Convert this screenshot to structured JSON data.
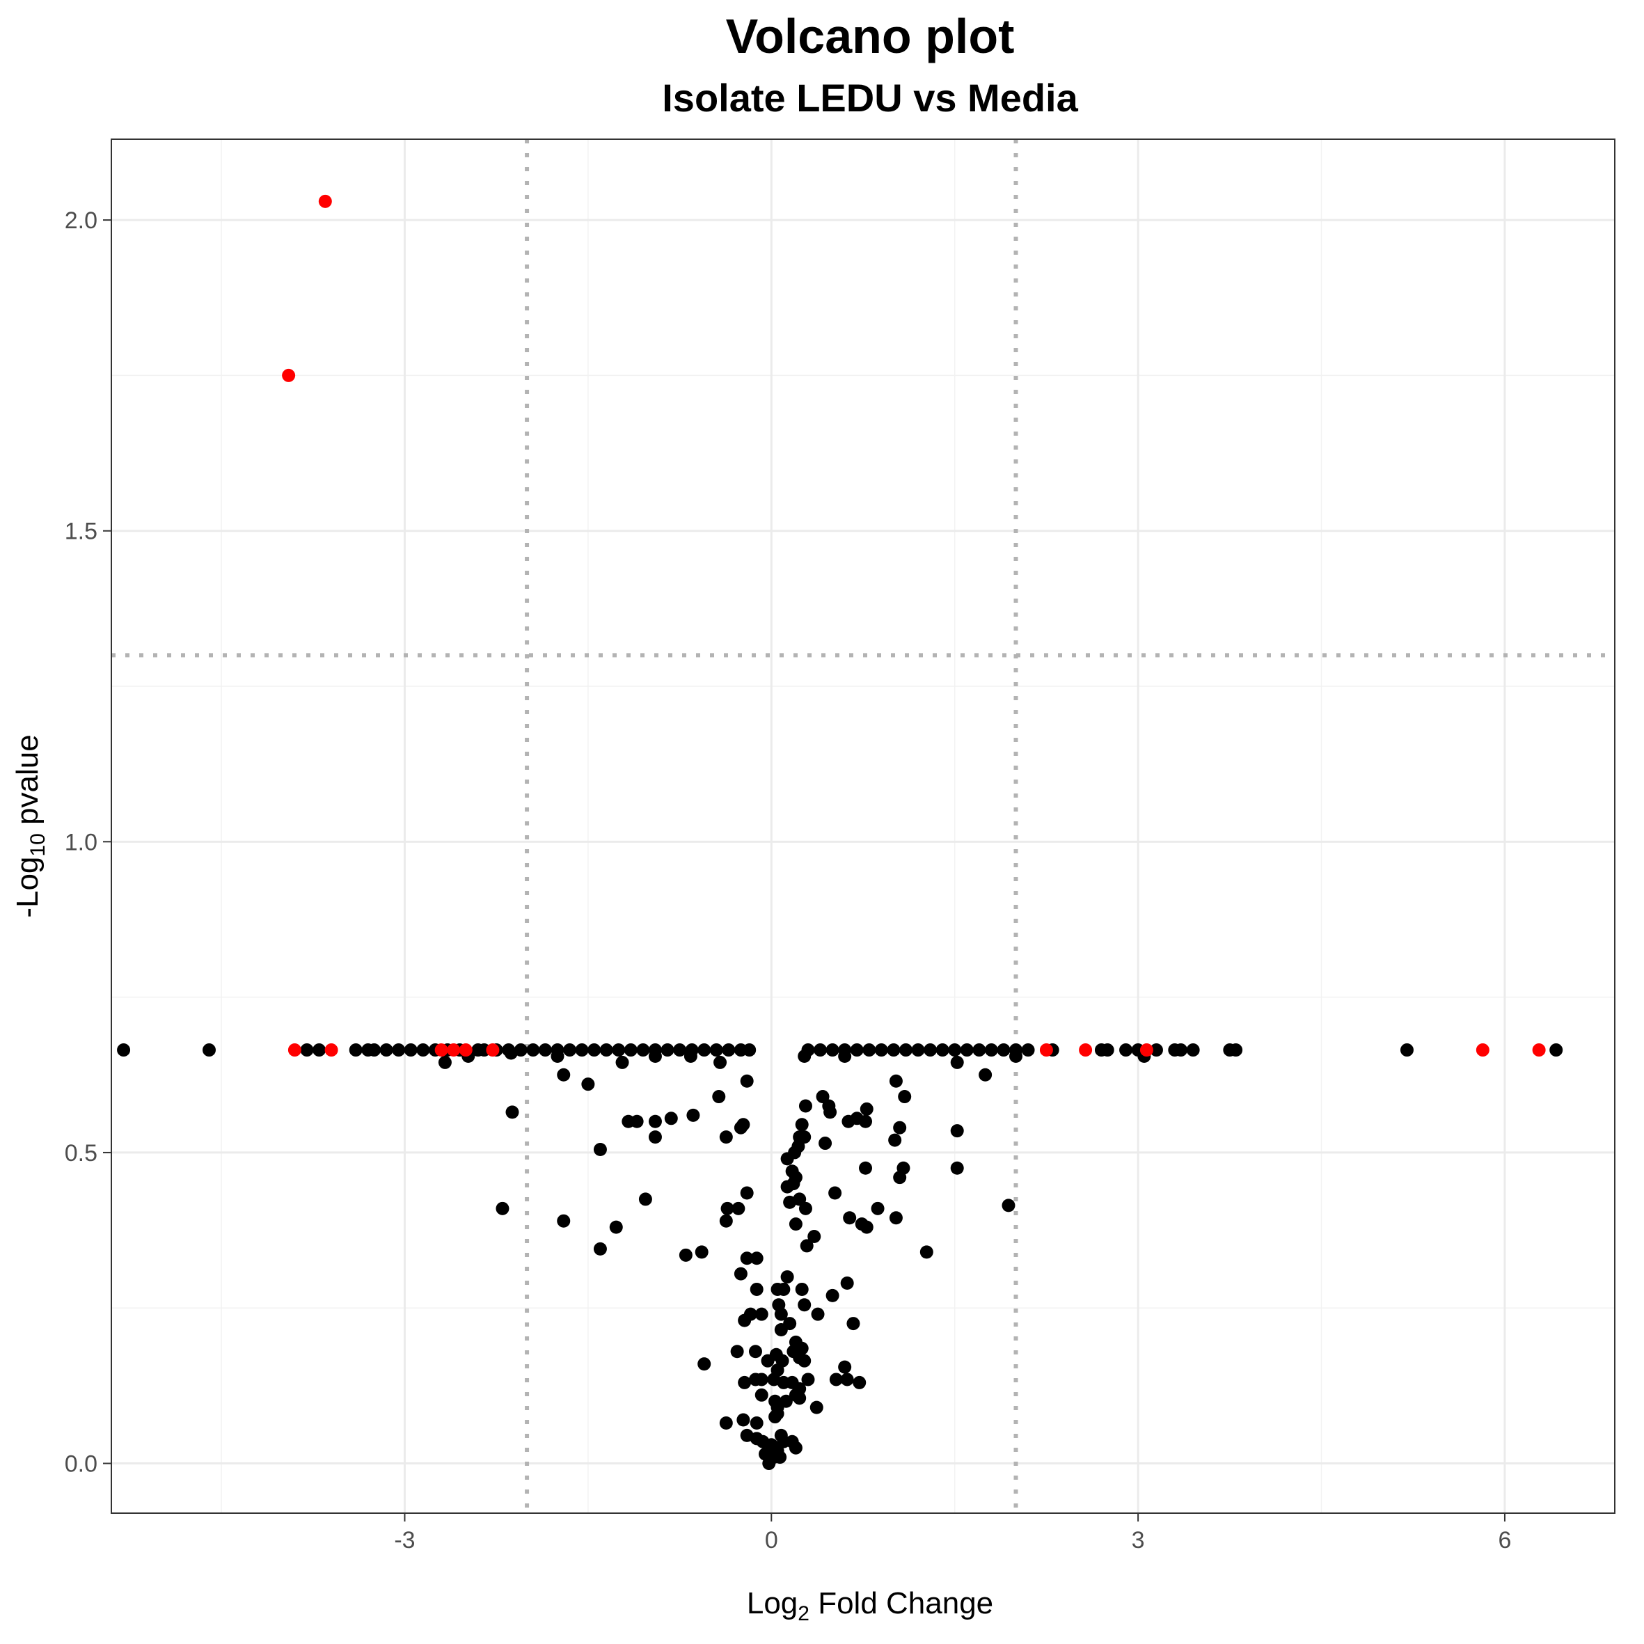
{
  "chart_data": {
    "type": "scatter",
    "title": "Volcano plot",
    "subtitle": "Isolate LEDU vs Media",
    "xlabel": {
      "prefix": "Log",
      "sub": "2",
      "suffix": " Fold Change"
    },
    "ylabel": {
      "prefix": "-Log",
      "sub": "10",
      "suffix": " pvalue"
    },
    "xlim": [
      -5.4,
      6.9
    ],
    "ylim": [
      -0.08,
      2.13
    ],
    "x_ticks": [
      -3,
      0,
      3,
      6
    ],
    "x_tick_labels": [
      "-3",
      "0",
      "3",
      "6"
    ],
    "y_ticks": [
      0.0,
      0.5,
      1.0,
      1.5,
      2.0
    ],
    "y_tick_labels": [
      "0.0",
      "0.5",
      "1.0",
      "1.5",
      "2.0"
    ],
    "grid": true,
    "thresholds": {
      "fold_change": [
        -2,
        2
      ],
      "neg_log10_pvalue": 1.3
    },
    "colors": {
      "highlighted": "#ff0000",
      "default": "#000000",
      "threshold_line": "#b3b3b3"
    },
    "series": [
      {
        "color": "#ff0000",
        "points": [
          [
            -3.65,
            2.03
          ],
          [
            -3.95,
            1.75
          ],
          [
            -3.9,
            0.665
          ],
          [
            -3.6,
            0.665
          ],
          [
            -2.7,
            0.665
          ],
          [
            -2.6,
            0.665
          ],
          [
            -2.5,
            0.665
          ],
          [
            -2.28,
            0.665
          ],
          [
            2.25,
            0.665
          ],
          [
            2.57,
            0.665
          ],
          [
            3.07,
            0.665
          ],
          [
            5.82,
            0.665
          ],
          [
            6.28,
            0.665
          ]
        ]
      },
      {
        "color": "#000000",
        "points": [
          [
            -5.3,
            0.665
          ],
          [
            -4.6,
            0.665
          ],
          [
            -3.8,
            0.665
          ],
          [
            -3.7,
            0.665
          ],
          [
            -3.4,
            0.665
          ],
          [
            -3.3,
            0.665
          ],
          [
            -3.25,
            0.665
          ],
          [
            -3.15,
            0.665
          ],
          [
            -3.05,
            0.665
          ],
          [
            -2.95,
            0.665
          ],
          [
            -2.85,
            0.665
          ],
          [
            -2.75,
            0.665
          ],
          [
            -2.65,
            0.665
          ],
          [
            -2.55,
            0.665
          ],
          [
            -2.4,
            0.665
          ],
          [
            -2.35,
            0.665
          ],
          [
            -2.25,
            0.665
          ],
          [
            -2.15,
            0.665
          ],
          [
            -2.05,
            0.665
          ],
          [
            -1.95,
            0.665
          ],
          [
            -1.85,
            0.665
          ],
          [
            -1.75,
            0.665
          ],
          [
            -1.65,
            0.665
          ],
          [
            -1.55,
            0.665
          ],
          [
            -1.45,
            0.665
          ],
          [
            -1.35,
            0.665
          ],
          [
            -1.25,
            0.665
          ],
          [
            -1.15,
            0.665
          ],
          [
            -1.05,
            0.665
          ],
          [
            -0.95,
            0.665
          ],
          [
            -0.85,
            0.665
          ],
          [
            -0.75,
            0.665
          ],
          [
            -0.65,
            0.665
          ],
          [
            -0.55,
            0.665
          ],
          [
            -0.45,
            0.665
          ],
          [
            -0.35,
            0.665
          ],
          [
            -0.25,
            0.665
          ],
          [
            -0.18,
            0.665
          ],
          [
            0.3,
            0.665
          ],
          [
            0.4,
            0.665
          ],
          [
            0.5,
            0.665
          ],
          [
            0.6,
            0.665
          ],
          [
            0.7,
            0.665
          ],
          [
            0.8,
            0.665
          ],
          [
            0.9,
            0.665
          ],
          [
            1.0,
            0.665
          ],
          [
            1.1,
            0.665
          ],
          [
            1.2,
            0.665
          ],
          [
            1.3,
            0.665
          ],
          [
            1.4,
            0.665
          ],
          [
            1.5,
            0.665
          ],
          [
            1.6,
            0.665
          ],
          [
            1.7,
            0.665
          ],
          [
            1.8,
            0.665
          ],
          [
            1.9,
            0.665
          ],
          [
            2.0,
            0.665
          ],
          [
            2.1,
            0.665
          ],
          [
            2.3,
            0.665
          ],
          [
            2.7,
            0.665
          ],
          [
            2.75,
            0.665
          ],
          [
            2.9,
            0.665
          ],
          [
            3.0,
            0.665
          ],
          [
            3.15,
            0.665
          ],
          [
            3.3,
            0.665
          ],
          [
            3.35,
            0.665
          ],
          [
            3.45,
            0.665
          ],
          [
            3.75,
            0.665
          ],
          [
            3.8,
            0.665
          ],
          [
            5.2,
            0.665
          ],
          [
            6.42,
            0.665
          ],
          [
            -2.67,
            0.645
          ],
          [
            -2.48,
            0.655
          ],
          [
            -2.13,
            0.66
          ],
          [
            -1.7,
            0.625
          ],
          [
            -1.75,
            0.655
          ],
          [
            -1.5,
            0.61
          ],
          [
            -1.22,
            0.645
          ],
          [
            -0.95,
            0.655
          ],
          [
            -0.66,
            0.655
          ],
          [
            -0.42,
            0.645
          ],
          [
            -0.43,
            0.59
          ],
          [
            -0.2,
            0.615
          ],
          [
            0.27,
            0.655
          ],
          [
            0.6,
            0.655
          ],
          [
            1.02,
            0.615
          ],
          [
            1.09,
            0.59
          ],
          [
            1.52,
            0.645
          ],
          [
            1.75,
            0.625
          ],
          [
            2.0,
            0.655
          ],
          [
            3.05,
            0.655
          ],
          [
            -2.12,
            0.565
          ],
          [
            -1.4,
            0.505
          ],
          [
            -1.17,
            0.55
          ],
          [
            -1.1,
            0.55
          ],
          [
            -0.95,
            0.55
          ],
          [
            -0.95,
            0.525
          ],
          [
            -0.82,
            0.555
          ],
          [
            -0.64,
            0.56
          ],
          [
            -0.37,
            0.525
          ],
          [
            -0.25,
            0.54
          ],
          [
            -0.23,
            0.545
          ],
          [
            0.25,
            0.545
          ],
          [
            0.23,
            0.525
          ],
          [
            0.27,
            0.525
          ],
          [
            0.28,
            0.575
          ],
          [
            0.42,
            0.59
          ],
          [
            0.44,
            0.515
          ],
          [
            0.47,
            0.575
          ],
          [
            0.48,
            0.565
          ],
          [
            0.63,
            0.55
          ],
          [
            0.7,
            0.555
          ],
          [
            0.77,
            0.55
          ],
          [
            0.78,
            0.57
          ],
          [
            1.01,
            0.52
          ],
          [
            1.05,
            0.54
          ],
          [
            1.52,
            0.535
          ],
          [
            0.2,
            0.46
          ],
          [
            0.13,
            0.49
          ],
          [
            0.17,
            0.47
          ],
          [
            0.19,
            0.5
          ],
          [
            0.22,
            0.51
          ],
          [
            -2.2,
            0.41
          ],
          [
            -1.7,
            0.39
          ],
          [
            -1.4,
            0.345
          ],
          [
            -1.27,
            0.38
          ],
          [
            -1.03,
            0.425
          ],
          [
            -0.7,
            0.335
          ],
          [
            -0.57,
            0.34
          ],
          [
            -0.37,
            0.39
          ],
          [
            -0.36,
            0.41
          ],
          [
            -0.27,
            0.41
          ],
          [
            -0.2,
            0.435
          ],
          [
            -0.2,
            0.33
          ],
          [
            -0.12,
            0.33
          ],
          [
            0.13,
            0.445
          ],
          [
            0.15,
            0.42
          ],
          [
            0.18,
            0.45
          ],
          [
            0.2,
            0.385
          ],
          [
            0.23,
            0.425
          ],
          [
            0.28,
            0.41
          ],
          [
            0.29,
            0.35
          ],
          [
            0.35,
            0.365
          ],
          [
            0.52,
            0.435
          ],
          [
            0.64,
            0.395
          ],
          [
            0.74,
            0.385
          ],
          [
            0.77,
            0.475
          ],
          [
            0.78,
            0.38
          ],
          [
            0.87,
            0.41
          ],
          [
            1.02,
            0.395
          ],
          [
            1.05,
            0.46
          ],
          [
            1.08,
            0.475
          ],
          [
            1.27,
            0.34
          ],
          [
            1.52,
            0.475
          ],
          [
            1.94,
            0.415
          ],
          [
            -0.25,
            0.305
          ],
          [
            -0.12,
            0.28
          ],
          [
            0.05,
            0.28
          ],
          [
            0.1,
            0.28
          ],
          [
            0.13,
            0.3
          ],
          [
            0.25,
            0.28
          ],
          [
            0.27,
            0.255
          ],
          [
            0.5,
            0.27
          ],
          [
            0.62,
            0.29
          ],
          [
            0.06,
            0.255
          ],
          [
            -0.22,
            0.23
          ],
          [
            -0.17,
            0.24
          ],
          [
            -0.08,
            0.24
          ],
          [
            0.08,
            0.24
          ],
          [
            0.08,
            0.215
          ],
          [
            0.15,
            0.225
          ],
          [
            0.38,
            0.24
          ],
          [
            0.67,
            0.225
          ],
          [
            -0.55,
            0.16
          ],
          [
            -0.28,
            0.18
          ],
          [
            -0.13,
            0.18
          ],
          [
            -0.03,
            0.165
          ],
          [
            0.04,
            0.175
          ],
          [
            0.09,
            0.165
          ],
          [
            0.18,
            0.18
          ],
          [
            0.2,
            0.195
          ],
          [
            0.23,
            0.17
          ],
          [
            0.25,
            0.185
          ],
          [
            0.27,
            0.165
          ],
          [
            0.6,
            0.155
          ],
          [
            -0.22,
            0.13
          ],
          [
            -0.13,
            0.135
          ],
          [
            -0.08,
            0.135
          ],
          [
            0.02,
            0.135
          ],
          [
            0.05,
            0.15
          ],
          [
            0.1,
            0.13
          ],
          [
            0.17,
            0.13
          ],
          [
            0.23,
            0.12
          ],
          [
            0.3,
            0.135
          ],
          [
            0.53,
            0.135
          ],
          [
            0.62,
            0.135
          ],
          [
            0.72,
            0.13
          ],
          [
            0.2,
            0.11
          ],
          [
            0.23,
            0.105
          ],
          [
            0.03,
            0.1
          ],
          [
            0.12,
            0.1
          ],
          [
            -0.08,
            0.11
          ],
          [
            0.05,
            0.09
          ],
          [
            0.37,
            0.09
          ],
          [
            -0.37,
            0.065
          ],
          [
            -0.23,
            0.07
          ],
          [
            -0.12,
            0.065
          ],
          [
            0.03,
            0.075
          ],
          [
            0.05,
            0.08
          ],
          [
            -0.2,
            0.045
          ],
          [
            -0.12,
            0.04
          ],
          [
            -0.07,
            0.035
          ],
          [
            0.0,
            0.03
          ],
          [
            0.08,
            0.045
          ],
          [
            0.2,
            0.025
          ],
          [
            0.17,
            0.035
          ],
          [
            -0.05,
            0.015
          ],
          [
            0.02,
            0.01
          ],
          [
            0.07,
            0.01
          ],
          [
            0.1,
            0.035
          ],
          [
            -0.02,
            0.0
          ],
          [
            0.05,
            0.02
          ]
        ]
      }
    ]
  }
}
